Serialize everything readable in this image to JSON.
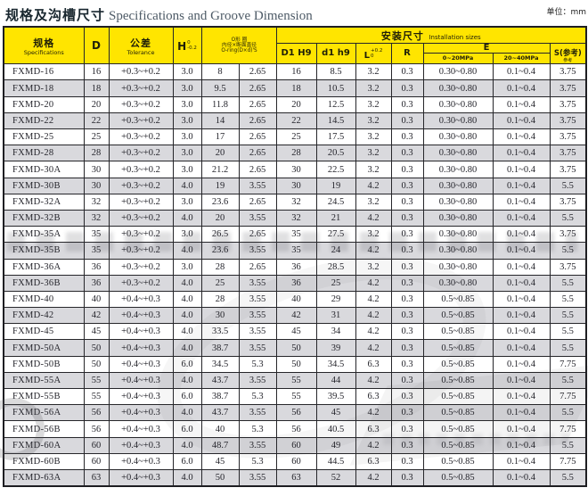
{
  "page": {
    "title_zh": "规格及沟槽尺寸",
    "title_en": "Specifications and Groove Dimension",
    "unit": "单位：mm"
  },
  "colors": {
    "header_yellow": "#ffe500",
    "row_alt_gray": "#d9d9dd",
    "border": "#26262a"
  },
  "table": {
    "header": {
      "spec_zh": "规格",
      "spec_en": "Specifications",
      "d_label": "D",
      "tol_zh": "公差",
      "tol_en": "Tolerance",
      "h_base": "H",
      "h_sup": "0",
      "h_sub": "-0.2",
      "oring_l1": "O形 圈",
      "oring_l2": "内径×断面直径",
      "oring_l3": "O-ring(D×d)'S",
      "install_zh": "安装尺寸",
      "install_en": "Installation sizes",
      "col_d1": "D1 H9",
      "col_d1h": "d1 h9",
      "l_base": "L",
      "l_sup": "+0.2",
      "l_sub": "0",
      "r_label": "R",
      "e_label": "E",
      "e_low": "0~20MPa",
      "e_high": "20~40MPa",
      "s_label": "S(参考)",
      "s_sub": "参考"
    },
    "rows": [
      [
        "FXMD-16",
        "16",
        "+0.3~+0.2",
        "3.0",
        "8",
        "2.65",
        "16",
        "8.5",
        "3.2",
        "0.3",
        "0.30~0.80",
        "0.1~0.4",
        "3.75"
      ],
      [
        "FXMD-18",
        "18",
        "+0.3~+0.2",
        "3.0",
        "9.5",
        "2.65",
        "18",
        "10.5",
        "3.2",
        "0.3",
        "0.30~0.80",
        "0.1~0.4",
        "3.75"
      ],
      [
        "FXMD-20",
        "20",
        "+0.3~+0.2",
        "3.0",
        "11.8",
        "2.65",
        "20",
        "12.5",
        "3.2",
        "0.3",
        "0.30~0.80",
        "0.1~0.4",
        "3.75"
      ],
      [
        "FXMD-22",
        "22",
        "+0.3~+0.2",
        "3.0",
        "14",
        "2.65",
        "22",
        "14.5",
        "3.2",
        "0.3",
        "0.30~0.80",
        "0.1~0.4",
        "3.75"
      ],
      [
        "FXMD-25",
        "25",
        "+0.3~+0.2",
        "3.0",
        "17",
        "2.65",
        "25",
        "17.5",
        "3.2",
        "0.3",
        "0.30~0.80",
        "0.1~0.4",
        "3.75"
      ],
      [
        "FXMD-28",
        "28",
        "+0.3~+0.2",
        "3.0",
        "20",
        "2.65",
        "28",
        "20.5",
        "3.2",
        "0.3",
        "0.30~0.80",
        "0.1~0.4",
        "3.75"
      ],
      [
        "FXMD-30A",
        "30",
        "+0.3~+0.2",
        "3.0",
        "21.2",
        "2.65",
        "30",
        "22.5",
        "3.2",
        "0.3",
        "0.30~0.80",
        "0.1~0.4",
        "3.75"
      ],
      [
        "FXMD-30B",
        "30",
        "+0.3~+0.2",
        "4.0",
        "19",
        "3.55",
        "30",
        "19",
        "4.2",
        "0.3",
        "0.30~0.80",
        "0.1~0.4",
        "5.5"
      ],
      [
        "FXMD-32A",
        "32",
        "+0.3~+0.2",
        "3.0",
        "23.6",
        "2.65",
        "32",
        "24.5",
        "3.2",
        "0.3",
        "0.30~0.80",
        "0.1~0.4",
        "3.75"
      ],
      [
        "FXMD-32B",
        "32",
        "+0.3~+0.2",
        "4.0",
        "20",
        "3.55",
        "32",
        "21",
        "4.2",
        "0.3",
        "0.30~0.80",
        "0.1~0.4",
        "5.5"
      ],
      [
        "FXMD-35A",
        "35",
        "+0.3~+0.2",
        "3.0",
        "26.5",
        "2.65",
        "35",
        "27.5",
        "3.2",
        "0.3",
        "0.30~0.80",
        "0.1~0.4",
        "3.75"
      ],
      [
        "FXMD-35B",
        "35",
        "+0.3~+0.2",
        "4.0",
        "23.6",
        "3.55",
        "35",
        "24",
        "4.2",
        "0.3",
        "0.30~0.80",
        "0.1~0.4",
        "5.5"
      ],
      [
        "FXMD-36A",
        "36",
        "+0.3~+0.2",
        "3.0",
        "28",
        "2.65",
        "36",
        "28.5",
        "3.2",
        "0.3",
        "0.30~0.80",
        "0.1~0.4",
        "3.75"
      ],
      [
        "FXMD-36B",
        "36",
        "+0.3~+0.2",
        "4.0",
        "25",
        "3.55",
        "36",
        "25",
        "4.2",
        "0.3",
        "0.30~0.80",
        "0.1~0.4",
        "5.5"
      ],
      [
        "FXMD-40",
        "40",
        "+0.4~+0.3",
        "4.0",
        "28",
        "3.55",
        "40",
        "29",
        "4.2",
        "0.3",
        "0.5~0.85",
        "0.1~0.4",
        "5.5"
      ],
      [
        "FXMD-42",
        "42",
        "+0.4~+0.3",
        "4.0",
        "30",
        "3.55",
        "42",
        "31",
        "4.2",
        "0.3",
        "0.5~0.85",
        "0.1~0.4",
        "5.5"
      ],
      [
        "FXMD-45",
        "45",
        "+0.4~+0.3",
        "4.0",
        "33.5",
        "3.55",
        "45",
        "34",
        "4.2",
        "0.3",
        "0.5~0.85",
        "0.1~0.4",
        "5.5"
      ],
      [
        "FXMD-50A",
        "50",
        "+0.4~+0.3",
        "4.0",
        "38.7",
        "3.55",
        "50",
        "39",
        "4.2",
        "0.3",
        "0.5~0.85",
        "0.1~0.4",
        "5.5"
      ],
      [
        "FXMD-50B",
        "50",
        "+0.4~+0.3",
        "6.0",
        "34.5",
        "5.3",
        "50",
        "34.5",
        "6.3",
        "0.3",
        "0.5~0.85",
        "0.1~0.4",
        "7.75"
      ],
      [
        "FXMD-55A",
        "55",
        "+0.4~+0.3",
        "4.0",
        "43.7",
        "3.55",
        "55",
        "44",
        "4.2",
        "0.3",
        "0.5~0.85",
        "0.1~0.4",
        "5.5"
      ],
      [
        "FXMD-55B",
        "55",
        "+0.4~+0.3",
        "6.0",
        "38.7",
        "5.3",
        "55",
        "39.5",
        "6.3",
        "0.3",
        "0.5~0.85",
        "0.1~0.4",
        "7.75"
      ],
      [
        "FXMD-56A",
        "56",
        "+0.4~+0.3",
        "4.0",
        "43.7",
        "3.55",
        "56",
        "45",
        "4.2",
        "0.3",
        "0.5~0.85",
        "0.1~0.4",
        "5.5"
      ],
      [
        "FXMD-56B",
        "56",
        "+0.4~+0.3",
        "6.0",
        "40",
        "5.3",
        "56",
        "40.5",
        "6.3",
        "0.3",
        "0.5~0.85",
        "0.1~0.4",
        "7.75"
      ],
      [
        "FXMD-60A",
        "60",
        "+0.4~+0.3",
        "4.0",
        "48.7",
        "3.55",
        "60",
        "49",
        "4.2",
        "0.3",
        "0.5~0.85",
        "0.1~0.4",
        "5.5"
      ],
      [
        "FXMD-60B",
        "60",
        "+0.4~+0.3",
        "6.0",
        "45",
        "5.3",
        "60",
        "44.5",
        "6.3",
        "0.3",
        "0.5~0.85",
        "0.1~0.4",
        "7.75"
      ],
      [
        "FXMD-63A",
        "63",
        "+0.4~+0.3",
        "4.0",
        "50",
        "3.55",
        "63",
        "52",
        "4.2",
        "0.3",
        "0.5~0.85",
        "0.1~0.4",
        "5.5"
      ]
    ]
  }
}
